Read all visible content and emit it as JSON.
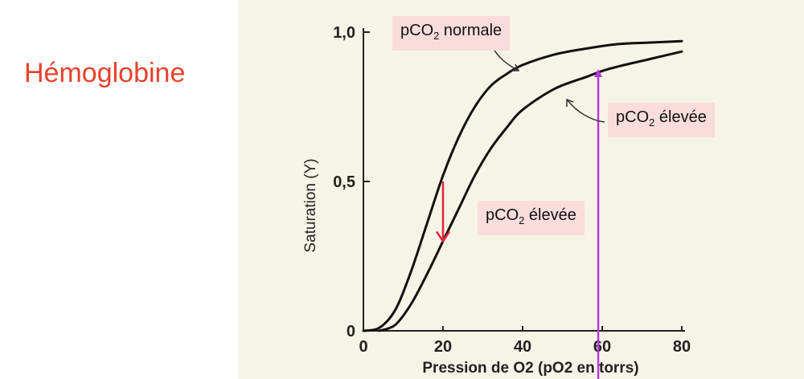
{
  "page": {
    "title": "Hémoglobine"
  },
  "callouts": {
    "normal": {
      "prefix": "pCO",
      "sub": "2",
      "suffix": " normale"
    },
    "elevated_right": {
      "prefix": "pCO",
      "sub": "2",
      "suffix": " élevée"
    },
    "elevated_middle": {
      "prefix": "pCO",
      "sub": "2",
      "suffix": " élevée"
    }
  },
  "colors": {
    "title": "#e8412c",
    "curve": "#111111",
    "shift_arrow": "#e0243c",
    "marker_line": "#b83ad6",
    "callout_bg": "#fadcdc"
  },
  "chart_data": {
    "type": "line",
    "xlabel": "Pression de O2 (pO2 en torrs)",
    "ylabel": "Saturation (Y)",
    "xlim": [
      0,
      80
    ],
    "ylim": [
      0,
      1.0
    ],
    "x_ticks": [
      0,
      20,
      40,
      60,
      80
    ],
    "x_tick_labels": [
      "0",
      "20",
      "40",
      "60",
      "80"
    ],
    "y_ticks": [
      0,
      0.5,
      1.0
    ],
    "y_tick_labels": [
      "0",
      "0,5",
      "1,0"
    ],
    "grid": false,
    "series": [
      {
        "name": "pCO2 normale",
        "x": [
          0,
          4,
          8,
          12,
          16,
          20,
          24,
          28,
          32,
          36,
          40,
          48,
          56,
          64,
          72,
          80
        ],
        "y": [
          0,
          0.01,
          0.07,
          0.2,
          0.36,
          0.52,
          0.65,
          0.75,
          0.82,
          0.86,
          0.89,
          0.925,
          0.945,
          0.96,
          0.965,
          0.97
        ]
      },
      {
        "name": "pCO2 élevée",
        "x": [
          4,
          8,
          12,
          16,
          20,
          24,
          28,
          32,
          36,
          40,
          48,
          56,
          60,
          64,
          72,
          80
        ],
        "y": [
          0,
          0.02,
          0.09,
          0.19,
          0.3,
          0.41,
          0.52,
          0.61,
          0.68,
          0.74,
          0.81,
          0.85,
          0.87,
          0.885,
          0.91,
          0.935
        ]
      }
    ],
    "annotations": [
      {
        "kind": "arrow",
        "x": 20,
        "y_from": 0.5,
        "y_to": 0.3
      },
      {
        "kind": "vertical-line",
        "x": 59
      }
    ]
  }
}
